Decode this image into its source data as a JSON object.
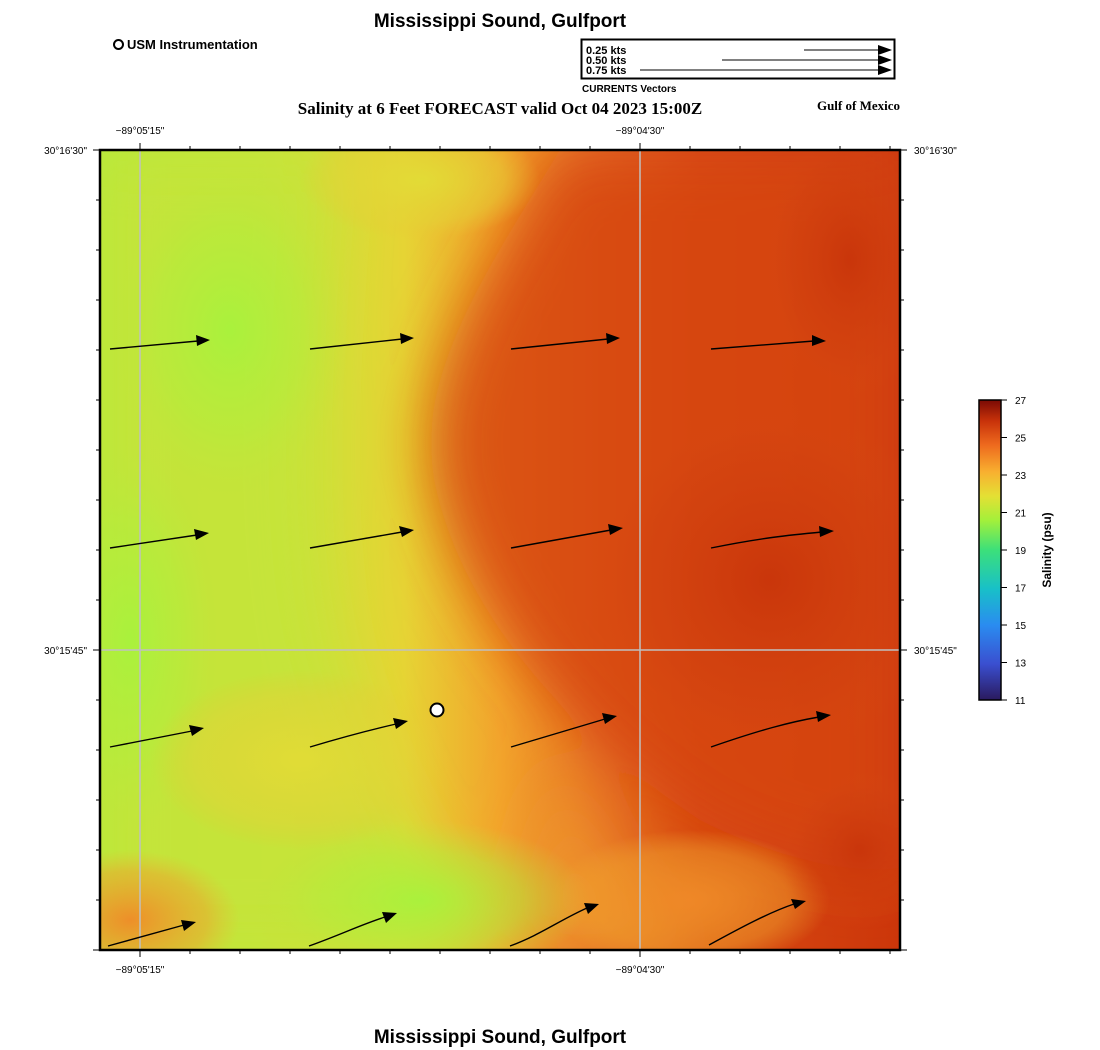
{
  "header": {
    "title": "Mississippi Sound, Gulfport",
    "subtitle": "Salinity at 6 Feet FORECAST valid Oct 04 2023 15:00Z",
    "region": "Gulf of Mexico"
  },
  "footer": {
    "title": "Mississippi Sound, Gulfport"
  },
  "station_legend": {
    "label": "USM Instrumentation"
  },
  "vector_legend": {
    "items": [
      "0.25 kts",
      "0.50 kts",
      "0.75 kts"
    ],
    "caption": "CURRENTS Vectors"
  },
  "map": {
    "lon_labels": [
      "−89°05'15\"",
      "−89°04'30\""
    ],
    "lat_labels": [
      "30°16'30\"",
      "30°15'45\""
    ],
    "station": {
      "name": "USM Instrumentation"
    },
    "colors": {
      "low": "#a8f03c",
      "mid": "#e8d030",
      "high": "#cc3a08"
    }
  },
  "colorbar": {
    "label": "Salinity (psu)",
    "min": 11,
    "max": 27,
    "ticks": [
      "27",
      "25",
      "23",
      "21",
      "19",
      "17",
      "15",
      "13",
      "11"
    ]
  }
}
